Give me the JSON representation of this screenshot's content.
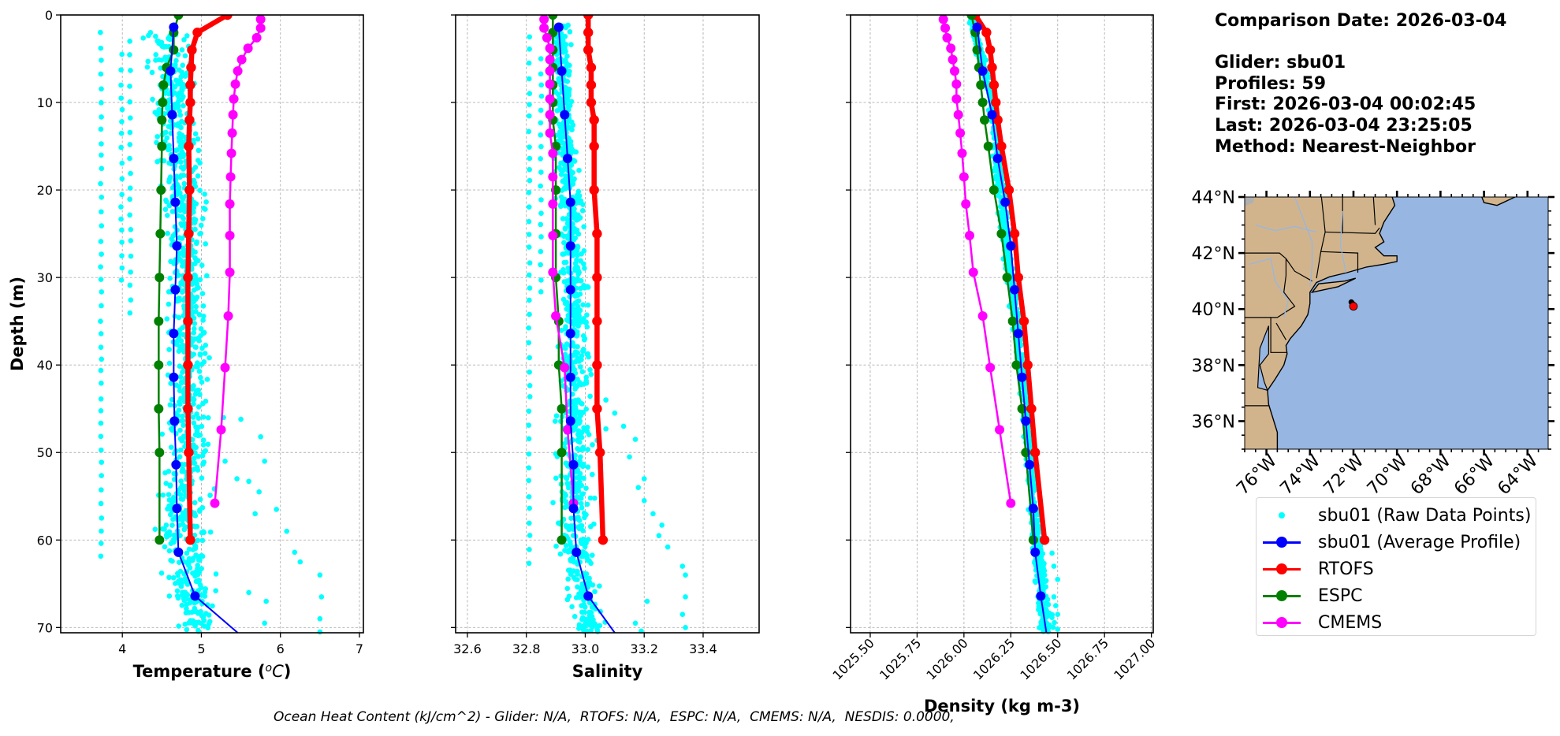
{
  "info": {
    "comparison_date": "Comparison Date: 2026-03-04",
    "glider": "Glider: sbu01",
    "profiles": "Profiles: 59",
    "first": "First: 2026-03-04 00:02:45",
    "last": "Last: 2026-03-04 23:25:05",
    "method": "Method: Nearest-Neighbor"
  },
  "footer": "Ocean Heat Content (kJ/cm^2) - Glider: N/A,  RTOFS: N/A,  ESPC: N/A,  CMEMS: N/A,  NESDIS: 0.0000,",
  "legend": [
    {
      "label": "sbu01 (Raw Data Points)",
      "color": "#00ffff",
      "type": "dot"
    },
    {
      "label": "sbu01 (Average Profile)",
      "color": "#0000ff",
      "type": "line"
    },
    {
      "label": "RTOFS",
      "color": "#ff0000",
      "type": "line"
    },
    {
      "label": "ESPC",
      "color": "#008000",
      "type": "line"
    },
    {
      "label": "CMEMS",
      "color": "#ff00ff",
      "type": "line"
    }
  ],
  "chart_data": [
    {
      "type": "line",
      "panel": "temperature",
      "title": "",
      "xlabel": "Temperature (°C)",
      "ylabel": "Depth (m)",
      "xlim": [
        3.22,
        7.05
      ],
      "ylim": [
        70.6,
        0
      ],
      "xticks": [
        "4",
        "5",
        "6",
        "7"
      ],
      "xtick_values": [
        4,
        5,
        6,
        7
      ],
      "yticks": [
        "0",
        "10",
        "20",
        "30",
        "40",
        "50",
        "60",
        "70"
      ],
      "ytick_values": [
        0,
        10,
        20,
        30,
        40,
        50,
        60,
        70
      ],
      "grid": true,
      "raw_points": {
        "name": "sbu01 (Raw Data Points)",
        "columns": [
          {
            "x": 3.73,
            "depth_range": [
              2,
              63
            ]
          },
          {
            "x": 3.99,
            "depth_range": [
              4.5,
              31
            ]
          },
          {
            "x": 4.1,
            "depth_range": [
              3,
              35
            ]
          }
        ],
        "cluster": [
          {
            "depth": 2,
            "x_range": [
              4.2,
              5.05
            ]
          },
          {
            "depth": 10,
            "x_range": [
              4.3,
              4.95
            ]
          },
          {
            "depth": 20,
            "x_range": [
              4.43,
              5.1
            ]
          },
          {
            "depth": 30,
            "x_range": [
              4.48,
              5.15
            ]
          },
          {
            "depth": 45,
            "x_range": [
              4.48,
              5.2
            ]
          },
          {
            "depth": 60,
            "x_range": [
              4.33,
              5.2
            ]
          },
          {
            "depth": 70.5,
            "x_range": [
              4.6,
              5.3
            ]
          }
        ],
        "outliers": [
          [
            5.28,
            46
          ],
          [
            5.5,
            46.2
          ],
          [
            5.75,
            48.2
          ],
          [
            5.8,
            51
          ],
          [
            5.3,
            51
          ],
          [
            5.45,
            53
          ],
          [
            5.6,
            53.3
          ],
          [
            5.73,
            54.5
          ],
          [
            5.68,
            57
          ],
          [
            5.95,
            56.5
          ],
          [
            6.08,
            59
          ],
          [
            6.18,
            61.4
          ],
          [
            6.25,
            62.5
          ],
          [
            6.5,
            64
          ],
          [
            6.52,
            66.5
          ],
          [
            6.5,
            69
          ],
          [
            6.5,
            70.5
          ],
          [
            5.82,
            67
          ],
          [
            5.8,
            69.5
          ],
          [
            5.6,
            66
          ]
        ]
      },
      "series": [
        {
          "name": "sbu01 (Average Profile)",
          "color": "#0000ff",
          "depth": [
            1.4,
            6.4,
            11.4,
            16.4,
            21.4,
            26.4,
            31.4,
            36.4,
            41.4,
            46.4,
            51.4,
            56.4,
            61.4,
            66.4,
            70.6
          ],
          "values": [
            4.65,
            4.61,
            4.63,
            4.65,
            4.67,
            4.69,
            4.67,
            4.65,
            4.65,
            4.66,
            4.68,
            4.69,
            4.71,
            4.92,
            5.46
          ]
        },
        {
          "name": "RTOFS",
          "color": "#ff0000",
          "depth": [
            0,
            2,
            4,
            6,
            8,
            10,
            12,
            15,
            20,
            25,
            30,
            35,
            40,
            45,
            50,
            60
          ],
          "values": [
            5.33,
            4.95,
            4.88,
            4.87,
            4.86,
            4.86,
            4.85,
            4.84,
            4.85,
            4.84,
            4.83,
            4.83,
            4.83,
            4.83,
            4.84,
            4.86
          ]
        },
        {
          "name": "ESPC",
          "color": "#008000",
          "depth": [
            0,
            2,
            4,
            6,
            8,
            10,
            12,
            15,
            20,
            25,
            30,
            35,
            40,
            45,
            50,
            60
          ],
          "values": [
            4.71,
            4.65,
            4.65,
            4.56,
            4.52,
            4.51,
            4.5,
            4.5,
            4.49,
            4.48,
            4.47,
            4.46,
            4.46,
            4.46,
            4.47,
            4.47
          ]
        },
        {
          "name": "CMEMS",
          "color": "#ff00ff",
          "depth": [
            0.5,
            1.5,
            2.6,
            3.8,
            5.1,
            6.4,
            7.9,
            9.6,
            11.4,
            13.5,
            15.8,
            18.5,
            21.6,
            25.2,
            29.4,
            34.4,
            40.3,
            47.4,
            55.8
          ],
          "values": [
            5.75,
            5.75,
            5.7,
            5.59,
            5.51,
            5.46,
            5.43,
            5.41,
            5.4,
            5.39,
            5.38,
            5.37,
            5.36,
            5.36,
            5.36,
            5.34,
            5.3,
            5.25,
            5.17
          ]
        }
      ]
    },
    {
      "type": "line",
      "panel": "salinity",
      "title": "",
      "xlabel": "Salinity",
      "ylabel": "",
      "xlim": [
        32.56,
        33.59
      ],
      "ylim": [
        70.6,
        0
      ],
      "xticks": [
        "32.6",
        "32.8",
        "33.0",
        "33.2",
        "33.4"
      ],
      "xtick_values": [
        32.6,
        32.8,
        33.0,
        33.2,
        33.4
      ],
      "yticks": [],
      "ytick_values": [
        0,
        10,
        20,
        30,
        40,
        50,
        60,
        70
      ],
      "grid": true,
      "raw_points": {
        "name": "sbu01 (Raw Data Points)",
        "columns": [
          {
            "x": 32.81,
            "depth_range": [
              2.5,
              63
            ]
          },
          {
            "x": 32.85,
            "depth_range": [
              5,
              32
            ]
          }
        ],
        "cluster": [
          {
            "depth": 1,
            "x_range": [
              32.88,
              32.95
            ]
          },
          {
            "depth": 10,
            "x_range": [
              32.88,
              32.97
            ]
          },
          {
            "depth": 20,
            "x_range": [
              32.89,
              33.0
            ]
          },
          {
            "depth": 30,
            "x_range": [
              32.9,
              33.02
            ]
          },
          {
            "depth": 45,
            "x_range": [
              32.88,
              33.05
            ]
          },
          {
            "depth": 60,
            "x_range": [
              32.88,
              33.05
            ]
          },
          {
            "depth": 70.5,
            "x_range": [
              32.95,
              33.08
            ]
          }
        ],
        "outliers": [
          [
            33.07,
            44
          ],
          [
            33.1,
            45.5
          ],
          [
            33.13,
            47
          ],
          [
            33.07,
            47.3
          ],
          [
            33.17,
            48.5
          ],
          [
            33.15,
            50.5
          ],
          [
            33.2,
            53
          ],
          [
            33.18,
            54
          ],
          [
            33.2,
            55.5
          ],
          [
            33.23,
            57
          ],
          [
            33.26,
            58.3
          ],
          [
            33.25,
            59.5
          ],
          [
            33.28,
            60.8
          ],
          [
            33.33,
            63
          ],
          [
            33.34,
            64
          ],
          [
            33.34,
            66.5
          ],
          [
            33.33,
            68.5
          ],
          [
            33.34,
            70
          ],
          [
            33.21,
            67
          ],
          [
            33.19,
            70.4
          ],
          [
            33.17,
            69.5
          ]
        ]
      },
      "series": [
        {
          "name": "sbu01 (Average Profile)",
          "color": "#0000ff",
          "depth": [
            1.4,
            6.4,
            11.4,
            16.4,
            21.4,
            26.4,
            31.4,
            36.4,
            41.4,
            46.4,
            51.4,
            56.4,
            61.4,
            66.4,
            70.6
          ],
          "values": [
            32.91,
            32.92,
            32.93,
            32.94,
            32.95,
            32.95,
            32.95,
            32.95,
            32.95,
            32.95,
            32.96,
            32.96,
            32.97,
            33.01,
            33.1
          ]
        },
        {
          "name": "RTOFS",
          "color": "#ff0000",
          "depth": [
            0,
            2,
            4,
            6,
            8,
            10,
            12,
            15,
            20,
            25,
            30,
            35,
            40,
            45,
            50,
            60
          ],
          "values": [
            33.01,
            33.01,
            33.01,
            33.02,
            33.02,
            33.02,
            33.03,
            33.03,
            33.03,
            33.04,
            33.04,
            33.04,
            33.04,
            33.04,
            33.05,
            33.06
          ]
        },
        {
          "name": "ESPC",
          "color": "#008000",
          "depth": [
            0,
            2,
            4,
            6,
            8,
            10,
            12,
            15,
            20,
            25,
            30,
            35,
            40,
            45,
            50,
            60
          ],
          "values": [
            32.89,
            32.89,
            32.89,
            32.89,
            32.89,
            32.89,
            32.89,
            32.9,
            32.9,
            32.9,
            32.9,
            32.91,
            32.91,
            32.92,
            32.92,
            32.92
          ]
        },
        {
          "name": "CMEMS",
          "color": "#ff00ff",
          "depth": [
            0.5,
            1.5,
            2.6,
            3.8,
            5.1,
            6.4,
            7.9,
            9.6,
            11.4,
            13.5,
            15.8,
            18.5,
            21.6,
            25.2,
            29.4,
            34.4,
            40.3,
            47.4,
            55.8
          ],
          "values": [
            32.86,
            32.86,
            32.87,
            32.88,
            32.88,
            32.88,
            32.88,
            32.88,
            32.88,
            32.88,
            32.89,
            32.89,
            32.89,
            32.89,
            32.89,
            32.9,
            32.93,
            32.94,
            32.96
          ]
        }
      ]
    },
    {
      "type": "line",
      "panel": "density",
      "title": "",
      "xlabel": "Density (kg m-3)",
      "ylabel": "",
      "xlim": [
        1025.395,
        1027.01
      ],
      "ylim": [
        70.6,
        0
      ],
      "xticks": [
        "1025.50",
        "1025.75",
        "1026.00",
        "1026.25",
        "1026.50",
        "1026.75",
        "1027.00"
      ],
      "xtick_values": [
        1025.5,
        1025.75,
        1026.0,
        1026.25,
        1026.5,
        1026.75,
        1027.0
      ],
      "yticks": [],
      "ytick_values": [
        0,
        10,
        20,
        30,
        40,
        50,
        60,
        70
      ],
      "grid": true,
      "raw_points": {
        "name": "sbu01 (Raw Data Points)",
        "columns": [],
        "cluster": [
          {
            "depth": 0.5,
            "x_range": [
              1026.02,
              1026.07
            ]
          },
          {
            "depth": 10,
            "x_range": [
              1026.12,
              1026.18
            ]
          },
          {
            "depth": 20,
            "x_range": [
              1026.16,
              1026.23
            ]
          },
          {
            "depth": 30,
            "x_range": [
              1026.22,
              1026.28
            ]
          },
          {
            "depth": 45,
            "x_range": [
              1026.3,
              1026.37
            ]
          },
          {
            "depth": 60,
            "x_range": [
              1026.35,
              1026.43
            ]
          },
          {
            "depth": 70.5,
            "x_range": [
              1026.38,
              1026.5
            ]
          }
        ],
        "outliers": [
          [
            1026.47,
            61.5
          ],
          [
            1026.48,
            63
          ],
          [
            1026.5,
            64.5
          ],
          [
            1026.48,
            66.5
          ],
          [
            1026.5,
            68.5
          ],
          [
            1026.5,
            70.2
          ],
          [
            1026.49,
            67.5
          ]
        ]
      },
      "series": [
        {
          "name": "sbu01 (Average Profile)",
          "color": "#0000ff",
          "depth": [
            1.4,
            6.4,
            11.4,
            16.4,
            21.4,
            26.4,
            31.4,
            36.4,
            41.4,
            46.4,
            51.4,
            56.4,
            61.4,
            66.4,
            70.6
          ],
          "values": [
            1026.07,
            1026.1,
            1026.15,
            1026.18,
            1026.22,
            1026.25,
            1026.27,
            1026.29,
            1026.31,
            1026.33,
            1026.35,
            1026.37,
            1026.38,
            1026.41,
            1026.44
          ]
        },
        {
          "name": "RTOFS",
          "color": "#ff0000",
          "depth": [
            0,
            2,
            4,
            6,
            8,
            10,
            12,
            15,
            20,
            25,
            30,
            35,
            40,
            45,
            50,
            60
          ],
          "values": [
            1026.06,
            1026.12,
            1026.14,
            1026.15,
            1026.16,
            1026.17,
            1026.18,
            1026.2,
            1026.24,
            1026.27,
            1026.29,
            1026.32,
            1026.34,
            1026.36,
            1026.38,
            1026.43
          ]
        },
        {
          "name": "ESPC",
          "color": "#008000",
          "depth": [
            0,
            2,
            4,
            6,
            8,
            10,
            12,
            15,
            20,
            25,
            30,
            35,
            40,
            45,
            50,
            60
          ],
          "values": [
            1026.04,
            1026.06,
            1026.07,
            1026.08,
            1026.09,
            1026.1,
            1026.11,
            1026.13,
            1026.16,
            1026.2,
            1026.23,
            1026.26,
            1026.28,
            1026.31,
            1026.33,
            1026.37
          ]
        },
        {
          "name": "CMEMS",
          "color": "#ff00ff",
          "depth": [
            0.5,
            1.5,
            2.6,
            3.8,
            5.1,
            6.4,
            7.9,
            9.6,
            11.4,
            13.5,
            15.8,
            18.5,
            21.6,
            25.2,
            29.4,
            34.4,
            40.3,
            47.4,
            55.8
          ],
          "values": [
            1025.89,
            1025.9,
            1025.91,
            1025.93,
            1025.94,
            1025.95,
            1025.96,
            1025.96,
            1025.97,
            1025.98,
            1025.99,
            1026.0,
            1026.01,
            1026.03,
            1026.05,
            1026.1,
            1026.14,
            1026.19,
            1026.25
          ]
        }
      ]
    },
    {
      "type": "map",
      "panel": "location-map",
      "title": "",
      "lon_range": [
        -77.0,
        -63.05
      ],
      "lat_range": [
        35.0,
        44.0
      ],
      "lon_ticks": [
        "76°W",
        "74°W",
        "72°W",
        "70°W",
        "68°W",
        "66°W",
        "64°W"
      ],
      "lon_tick_values": [
        -76,
        -74,
        -72,
        -70,
        -68,
        -66,
        -64
      ],
      "lat_ticks": [
        "44°N",
        "42°N",
        "40°N",
        "38°N",
        "36°N"
      ],
      "lat_tick_values": [
        44,
        42,
        40,
        38,
        36
      ],
      "ocean_color": "#97b6e1",
      "land_color": "#d2b48c",
      "glider_track": {
        "lon": [
          -72.1,
          -72.0
        ],
        "lat": [
          40.25,
          40.15
        ],
        "color": "#000000"
      },
      "model_point": {
        "lon": -72.0,
        "lat": 40.1,
        "color": "#ff0000"
      }
    }
  ]
}
